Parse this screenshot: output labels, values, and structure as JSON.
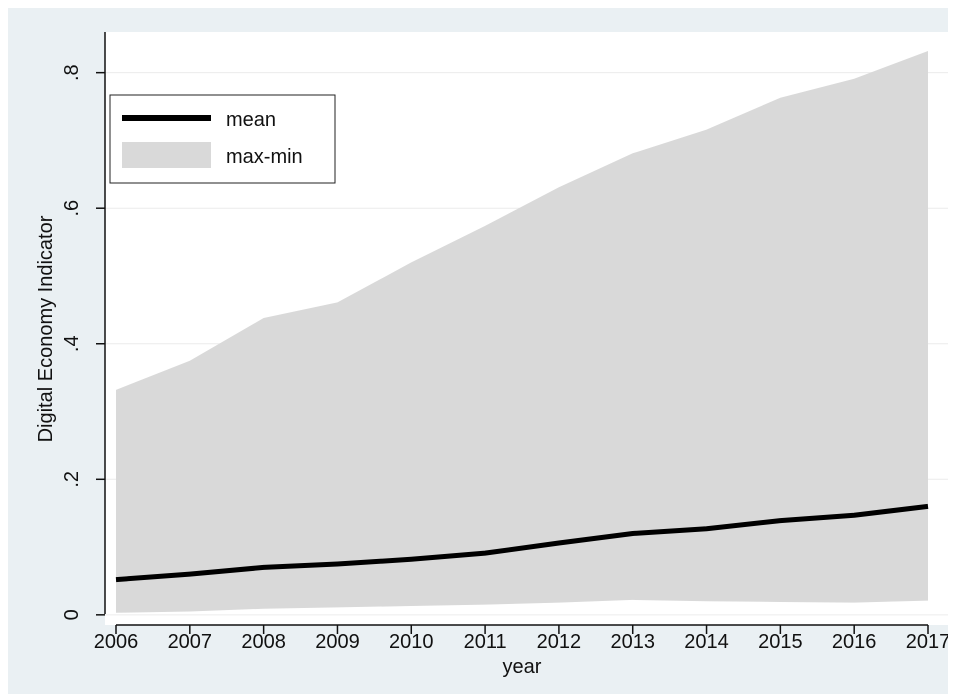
{
  "chart_data": {
    "type": "area",
    "x_label": "year",
    "y_label": "Digital Economy Indicator",
    "x": [
      2006,
      2007,
      2008,
      2009,
      2010,
      2011,
      2012,
      2013,
      2014,
      2015,
      2016,
      2017
    ],
    "x_tick_labels": [
      "2006",
      "2007",
      "2008",
      "2009",
      "2010",
      "2011",
      "2012",
      "2013",
      "2014",
      "2015",
      "2016",
      "2017"
    ],
    "y_ticks": [
      0,
      0.2,
      0.4,
      0.6,
      0.8
    ],
    "y_tick_labels": [
      "0",
      ".2",
      ".4",
      ".6",
      ".8"
    ],
    "ylim": [
      -0.015,
      0.86
    ],
    "grid": "horizontal",
    "legend_position": "top-left",
    "series": [
      {
        "name": "mean",
        "kind": "line",
        "color": "#000000",
        "values": [
          0.052,
          0.06,
          0.07,
          0.075,
          0.082,
          0.091,
          0.106,
          0.12,
          0.127,
          0.139,
          0.147,
          0.16
        ]
      },
      {
        "name": "max-min",
        "kind": "band",
        "color": "#d9d9d9",
        "upper": [
          0.332,
          0.375,
          0.438,
          0.461,
          0.52,
          0.574,
          0.631,
          0.681,
          0.716,
          0.763,
          0.791,
          0.832
        ],
        "lower": [
          0.003,
          0.005,
          0.009,
          0.011,
          0.013,
          0.015,
          0.018,
          0.022,
          0.02,
          0.019,
          0.018,
          0.021
        ]
      }
    ]
  }
}
